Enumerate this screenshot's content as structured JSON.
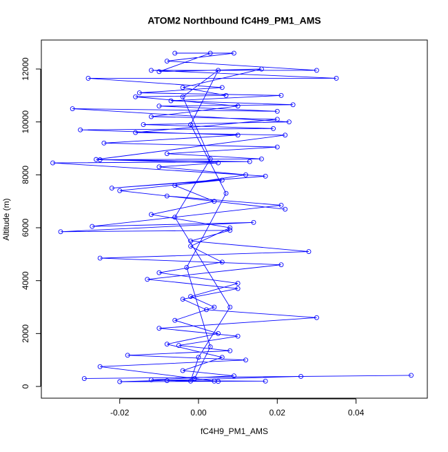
{
  "chart_data": {
    "type": "line",
    "title": "ATOM2 Northbound fC4H9_PM1_AMS",
    "x_label": "fC4H9_PM1_AMS",
    "y_label": "Altitude (m)",
    "x": [
      0.054,
      -0.029,
      0.026,
      -0.02,
      0.017,
      -0.008,
      0.005,
      -0.025,
      0.012,
      -0.018,
      0.008,
      -0.005,
      0.01,
      -0.01,
      0.03,
      0.002,
      -0.004,
      0.01,
      -0.013,
      0.021,
      -0.025,
      0.028,
      -0.002,
      0.008,
      -0.035,
      0.014,
      -0.027,
      0.021,
      -0.008,
      0.022,
      -0.02,
      0.006,
      -0.022,
      0.017,
      -0.037,
      0.013,
      -0.025,
      0.016,
      -0.008,
      0.02,
      -0.024,
      0.01,
      -0.03,
      0.019,
      -0.014,
      0.023,
      -0.032,
      0.02,
      -0.01,
      0.024,
      -0.007,
      0.021,
      -0.015,
      0.006,
      -0.028,
      0.035,
      -0.012,
      0.03,
      -0.008,
      0.009,
      -0.006,
      0.003,
      -0.01,
      0.016,
      -0.004,
      0.007,
      -0.016,
      0.01,
      -0.012,
      0.02,
      -0.016,
      0.022,
      -0.026,
      0.005,
      -0.01,
      0.012,
      -0.006,
      0.004,
      -0.012,
      0.008,
      -0.002,
      0.006,
      -0.01,
      0.01,
      -0.002,
      0.004,
      -0.006,
      0.005,
      -0.008,
      0.006,
      -0.004,
      0.009,
      -0.012,
      0.004,
      -0.002,
      0.0,
      0.008,
      -0.006,
      0.003,
      -0.004,
      0.005,
      -0.002,
      0.007,
      -0.003,
      0.003,
      -0.001
    ],
    "series": [
      {
        "color": "#0000ff",
        "values": [
          420,
          300,
          380,
          180,
          200,
          220,
          190,
          750,
          1000,
          1180,
          1350,
          1550,
          1900,
          2200,
          2600,
          2900,
          3300,
          3700,
          4050,
          4600,
          4850,
          5100,
          5500,
          5900,
          5850,
          6200,
          6050,
          6850,
          7200,
          6700,
          7400,
          7800,
          7500,
          7950,
          8450,
          8500,
          8570,
          8600,
          8800,
          9050,
          9200,
          9500,
          9700,
          9750,
          9900,
          10000,
          10500,
          10400,
          10600,
          10650,
          10800,
          11000,
          11100,
          11300,
          11650,
          11650,
          11950,
          11950,
          12300,
          12600,
          12600,
          12600,
          11900,
          12000,
          11300,
          11000,
          10950,
          10600,
          10200,
          10100,
          9600,
          9500,
          8580,
          8450,
          8300,
          8000,
          7600,
          7000,
          6500,
          6000,
          5300,
          4700,
          4300,
          3900,
          3400,
          3000,
          2500,
          2000,
          1600,
          1100,
          600,
          400,
          250,
          200,
          200,
          1100,
          3000,
          6400,
          8600,
          10950,
          11950,
          9900,
          7300,
          4500,
          1500,
          300
        ]
      }
    ],
    "xlim": [
      -0.0399,
      0.0581
    ],
    "ylim": [
      -443,
      13096
    ],
    "xticks": [
      {
        "value": -0.02,
        "label": "-0.02"
      },
      {
        "value": 0,
        "label": "0.00"
      },
      {
        "value": 0.02,
        "label": "0.02"
      },
      {
        "value": 0.04,
        "label": "0.04"
      }
    ],
    "yticks": [
      0,
      2000,
      4000,
      6000,
      8000,
      10000,
      12000
    ]
  }
}
